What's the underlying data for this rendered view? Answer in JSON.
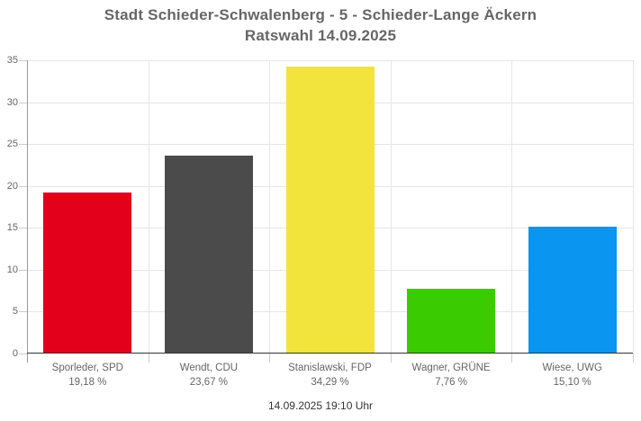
{
  "header": {
    "title": "Stadt Schieder-Schwalenberg - 5 - Schieder-Lange Äckern",
    "subtitle": "Ratswahl 14.09.2025"
  },
  "footer": {
    "timestamp": "14.09.2025 19:10 Uhr"
  },
  "chart_data": {
    "type": "bar",
    "title": "Stadt Schieder-Schwalenberg - 5 - Schieder-Lange Äckern",
    "subtitle": "Ratswahl 14.09.2025",
    "categories": [
      "Sporleder, SPD",
      "Wendt, CDU",
      "Stanislawski, FDP",
      "Wagner, GRÜNE",
      "Wiese, UWG"
    ],
    "values": [
      19.18,
      23.67,
      34.29,
      7.76,
      15.1
    ],
    "value_labels": [
      "19,18 %",
      "23,67 %",
      "34,29 %",
      "7,76 %",
      "15,10 %"
    ],
    "bar_colors": [
      "#e2001a",
      "#4b4b4b",
      "#f2e43c",
      "#3bcc00",
      "#0995f0"
    ],
    "xlabel": "",
    "ylabel": "",
    "ylim": [
      0,
      35
    ],
    "yticks": [
      0,
      5,
      10,
      15,
      20,
      25,
      30,
      35
    ],
    "grid": true,
    "legend": false
  },
  "colors": {
    "background": "#ffffff",
    "title_text": "#666666",
    "axis_text": "#666666",
    "gridline": "#e6e6e6",
    "axis_line": "#999999",
    "baseline": "#333333",
    "tick": "#cccccc",
    "footer_text": "#333333"
  }
}
